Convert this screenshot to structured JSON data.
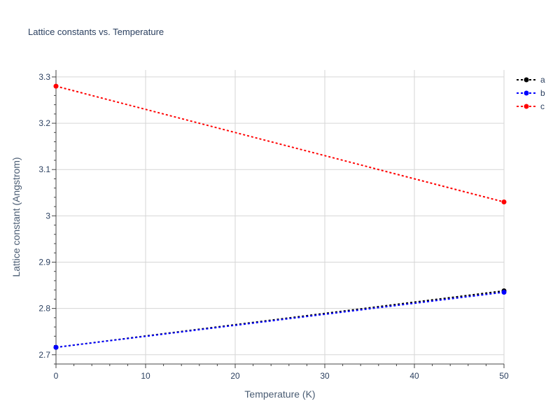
{
  "chart_data": {
    "type": "line",
    "title": "Lattice constants vs. Temperature",
    "xlabel": "Temperature (K)",
    "ylabel": "Lattice constant (Angstrom)",
    "xlim": [
      0,
      50
    ],
    "ylim": [
      2.68,
      3.315
    ],
    "x_ticks": [
      0,
      10,
      20,
      30,
      40,
      50
    ],
    "x_tick_labels": [
      "0",
      "10",
      "20",
      "30",
      "40",
      "50"
    ],
    "y_ticks": [
      2.7,
      2.8,
      2.9,
      3.0,
      3.1,
      3.2,
      3.3
    ],
    "y_tick_labels": [
      "2.7",
      "2.8",
      "2.9",
      "3",
      "3.1",
      "3.2",
      "3.3"
    ],
    "grid": true,
    "legend_position": "top-right",
    "series": [
      {
        "name": "a",
        "color": "#000000",
        "x": [
          0,
          50
        ],
        "y": [
          2.716,
          2.838
        ]
      },
      {
        "name": "b",
        "color": "#0000ff",
        "x": [
          0,
          50
        ],
        "y": [
          2.716,
          2.835
        ]
      },
      {
        "name": "c",
        "color": "#ff0000",
        "x": [
          0,
          50
        ],
        "y": [
          3.28,
          3.03
        ]
      }
    ]
  }
}
